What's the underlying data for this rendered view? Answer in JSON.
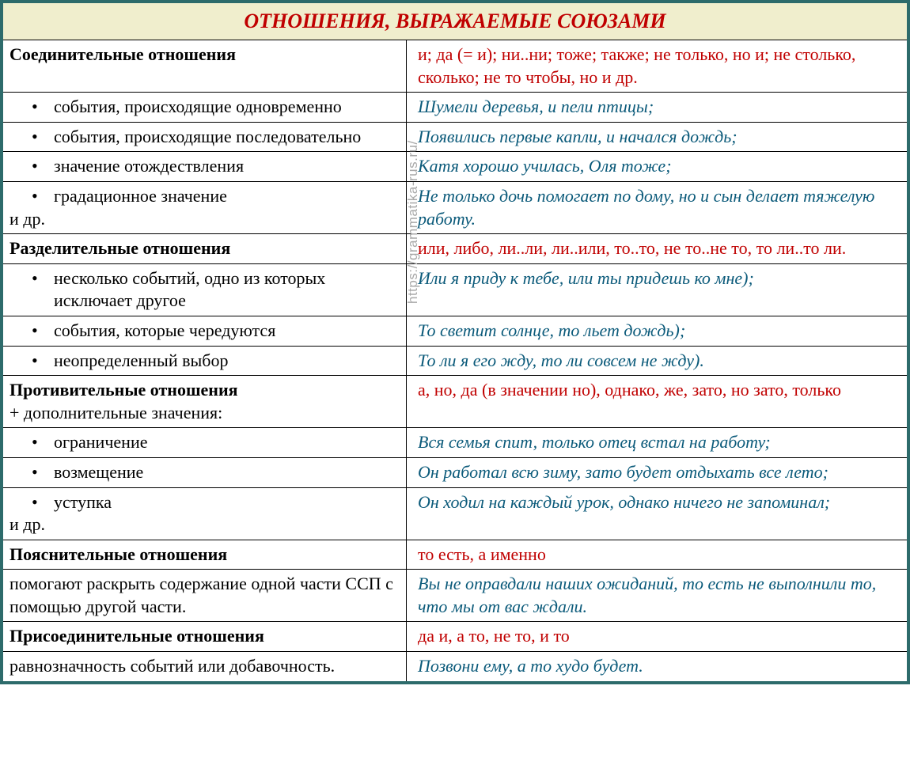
{
  "title": "ОТНОШЕНИЯ, ВЫРАЖАЕМЫЕ СОЮЗАМИ",
  "watermark": "https://grammatika-rus.ru/",
  "colors": {
    "border": "#2d6b6b",
    "title_bg": "#f0eecd",
    "title_color": "#c00000",
    "conj_color": "#c00000",
    "example_color": "#0b5a7a",
    "text_color": "#000000",
    "watermark_color": "#a9a9a9"
  },
  "rows": [
    {
      "left_type": "heading",
      "left": "Соединительные отношения",
      "right_type": "conj",
      "right": "и; да (= и); ни..ни; тоже; также; не только, но и; не столько, сколько; не то чтобы, но и др."
    },
    {
      "left_type": "bullet",
      "left": "события, происходящие одновременно",
      "right_type": "example",
      "right": "Шумели деревья, и пели птицы;"
    },
    {
      "left_type": "bullet",
      "left": "события, происходящие последовательно",
      "right_type": "example",
      "right": "Появились первые капли, и начался дождь;"
    },
    {
      "left_type": "bullet",
      "left": "значение отождествления",
      "right_type": "example",
      "right": "Катя хорошо училась, Оля тоже;"
    },
    {
      "left_type": "bullet_tail",
      "left": "градационное значение",
      "left_tail": "и др.",
      "right_type": "example",
      "right": "Не только дочь помогает по дому, но и сын делает тяжелую работу."
    },
    {
      "left_type": "heading",
      "left": "Разделительные отношения",
      "right_type": "conj",
      "right": "или, либо, ли..ли, ли..или, то..то, не то..не то, то ли..то ли."
    },
    {
      "left_type": "bullet",
      "left": "несколько событий, одно из которых исключает другое",
      "right_type": "example",
      "right": "Или я приду к тебе, или ты придешь ко мне);"
    },
    {
      "left_type": "bullet",
      "left": "события, которые чередуются",
      "right_type": "example",
      "right": "То светит солнце, то льет дождь);"
    },
    {
      "left_type": "bullet",
      "left": "неопределенный выбор",
      "right_type": "example",
      "right": "То ли я его жду, то ли совсем не жду)."
    },
    {
      "left_type": "heading_tail",
      "left": "Противительные отношения",
      "left_tail": "+ дополнительные значения:",
      "right_type": "conj",
      "right": "а, но, да (в значении но), однако, же, зато, но зато, только"
    },
    {
      "left_type": "bullet",
      "left": "ограничение",
      "right_type": "example",
      "right": "Вся семья спит, только отец встал на работу;"
    },
    {
      "left_type": "bullet",
      "left": "возмещение",
      "right_type": "example",
      "right": "Он работал всю зиму, зато будет отдыхать все лето;"
    },
    {
      "left_type": "bullet_tail",
      "left": "уступка",
      "left_tail": " и др.",
      "right_type": "example",
      "right": "Он ходил на каждый урок, однако ничего не запоминал;"
    },
    {
      "left_type": "heading",
      "left": "Пояснительные отношения",
      "right_type": "conj",
      "right": "то есть, а именно"
    },
    {
      "left_type": "plain",
      "left": "помогают раскрыть содержание одной части ССП с помощью другой части.",
      "right_type": "example",
      "right": "Вы не оправдали наших ожиданий, то есть не выполнили то, что мы от вас ждали."
    },
    {
      "left_type": "heading",
      "left": "Присоединительные отношения",
      "right_type": "conj",
      "right": "да и, а то, не то, и то"
    },
    {
      "left_type": "plain",
      "left": "равнозначность событий или добавочность.",
      "right_type": "example",
      "right": "Позвони ему, а то худо будет."
    }
  ]
}
